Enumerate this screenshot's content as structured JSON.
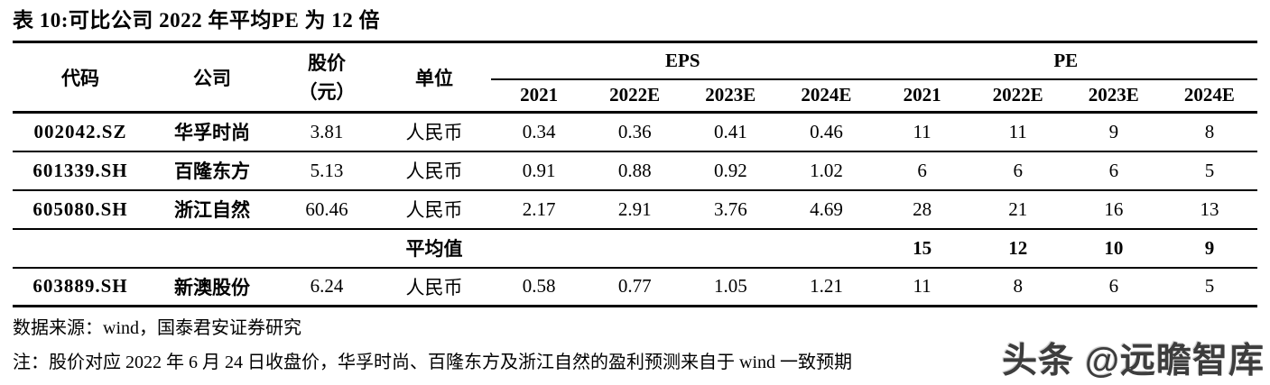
{
  "page": {
    "title": "表 10:可比公司 2022 年平均PE 为 12 倍"
  },
  "table": {
    "headers": {
      "code": "代码",
      "company": "公司",
      "price_line1": "股价",
      "price_line2": "（元）",
      "unit": "单位",
      "eps_group": "EPS",
      "pe_group": "PE"
    },
    "years": [
      "2021",
      "2022E",
      "2023E",
      "2024E"
    ],
    "rows": [
      {
        "code": "002042.SZ",
        "company": "华孚时尚",
        "price": "3.81",
        "unit": "人民币",
        "eps": [
          "0.34",
          "0.36",
          "0.41",
          "0.46"
        ],
        "pe": [
          "11",
          "11",
          "9",
          "8"
        ]
      },
      {
        "code": "601339.SH",
        "company": "百隆东方",
        "price": "5.13",
        "unit": "人民币",
        "eps": [
          "0.91",
          "0.88",
          "0.92",
          "1.02"
        ],
        "pe": [
          "6",
          "6",
          "6",
          "5"
        ]
      },
      {
        "code": "605080.SH",
        "company": "浙江自然",
        "price": "60.46",
        "unit": "人民币",
        "eps": [
          "2.17",
          "2.91",
          "3.76",
          "4.69"
        ],
        "pe": [
          "28",
          "21",
          "16",
          "13"
        ]
      }
    ],
    "average": {
      "label": "平均值",
      "pe": [
        "15",
        "12",
        "10",
        "9"
      ]
    },
    "subject": {
      "code": "603889.SH",
      "company": "新澳股份",
      "price": "6.24",
      "unit": "人民币",
      "eps": [
        "0.58",
        "0.77",
        "1.05",
        "1.21"
      ],
      "pe": [
        "11",
        "8",
        "6",
        "5"
      ]
    }
  },
  "footer": {
    "source": "数据来源：wind，国泰君安证券研究",
    "note": "注：股价对应 2022 年 6 月 24 日收盘价，华孚时尚、百隆东方及浙江自然的盈利预测来自于 wind 一致预期"
  },
  "watermark": {
    "text": "头条 @远瞻智库"
  }
}
